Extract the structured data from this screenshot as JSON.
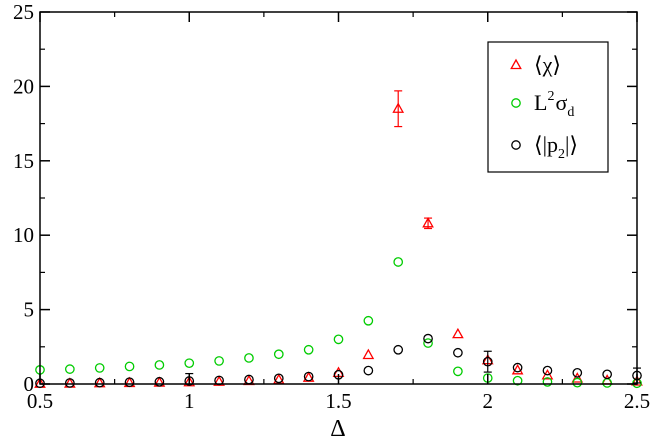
{
  "chart_data": {
    "type": "scatter",
    "xlabel": "Δ",
    "ylabel": "",
    "xlim": [
      0.5,
      2.5
    ],
    "ylim": [
      0,
      25
    ],
    "x_ticks": [
      "0.5",
      "1",
      "1.5",
      "2",
      "2.5"
    ],
    "x_tick_values": [
      0.5,
      1,
      1.5,
      2,
      2.5
    ],
    "y_ticks": [
      "0",
      "5",
      "10",
      "15",
      "20",
      "25"
    ],
    "y_tick_values": [
      0,
      5,
      10,
      15,
      20,
      25
    ],
    "grid": false,
    "legend_position": "top-right",
    "series": [
      {
        "key": "chi",
        "legend_main": "⟨χ⟩",
        "marker": "triangle",
        "color": "#ff0000",
        "x": [
          0.5,
          0.6,
          0.7,
          0.8,
          0.9,
          1.0,
          1.1,
          1.2,
          1.3,
          1.4,
          1.5,
          1.6,
          1.7,
          1.8,
          1.9,
          2.0,
          2.1,
          2.2,
          2.3,
          2.4,
          2.5
        ],
        "y": [
          0.02,
          0.03,
          0.05,
          0.07,
          0.09,
          0.12,
          0.15,
          0.2,
          0.28,
          0.42,
          0.75,
          1.95,
          18.5,
          10.8,
          3.35,
          1.6,
          0.92,
          0.58,
          0.37,
          0.24,
          0.17
        ],
        "err": [
          0,
          0,
          0,
          0,
          0,
          0,
          0,
          0,
          0,
          0,
          0,
          0,
          1.2,
          0.35,
          0,
          0,
          0,
          0,
          0,
          0,
          0
        ]
      },
      {
        "key": "sigma",
        "legend_main": "L",
        "legend_sup": "2",
        "legend_mid": "σ",
        "legend_sub": "d",
        "marker": "circle",
        "color": "#00cc00",
        "x": [
          0.5,
          0.6,
          0.7,
          0.8,
          0.9,
          1.0,
          1.1,
          1.2,
          1.3,
          1.4,
          1.5,
          1.6,
          1.7,
          1.8,
          1.9,
          2.0,
          2.1,
          2.2,
          2.3,
          2.4,
          2.5
        ],
        "y": [
          0.95,
          1.0,
          1.08,
          1.18,
          1.28,
          1.4,
          1.55,
          1.75,
          2.0,
          2.3,
          3.0,
          4.25,
          8.2,
          2.75,
          0.85,
          0.4,
          0.22,
          0.14,
          0.09,
          0.07,
          0.05
        ],
        "err": [
          0,
          0,
          0,
          0,
          0,
          0,
          0,
          0,
          0,
          0,
          0,
          0,
          0,
          0,
          0,
          0,
          0,
          0,
          0,
          0,
          0
        ]
      },
      {
        "key": "p2",
        "legend_main": "⟨|p",
        "legend_sub": "2",
        "legend_tail": "|⟩",
        "marker": "circle",
        "color": "#000000",
        "x": [
          0.5,
          0.6,
          0.7,
          0.8,
          0.9,
          1.0,
          1.1,
          1.2,
          1.3,
          1.4,
          1.5,
          1.6,
          1.7,
          1.8,
          1.9,
          2.0,
          2.1,
          2.2,
          2.3,
          2.4,
          2.5
        ],
        "y": [
          0.05,
          0.07,
          0.09,
          0.12,
          0.15,
          0.2,
          0.24,
          0.3,
          0.38,
          0.5,
          0.62,
          0.9,
          2.3,
          3.05,
          2.1,
          1.5,
          1.1,
          0.9,
          0.75,
          0.65,
          0.57
        ],
        "err": [
          0,
          0,
          0,
          0,
          0,
          0.5,
          0,
          0,
          0,
          0,
          0,
          0,
          0,
          0,
          0,
          0.7,
          0,
          0,
          0,
          0,
          0.5
        ]
      }
    ]
  }
}
